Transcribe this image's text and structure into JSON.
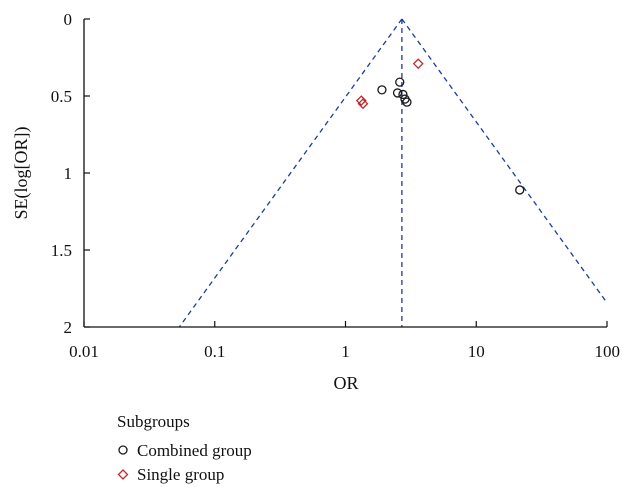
{
  "chart_data": {
    "type": "scatter",
    "title": "",
    "xlabel": "OR",
    "ylabel": "SE(log[OR])",
    "x_scale": "log",
    "xlim": [
      0.01,
      100
    ],
    "x_ticks": [
      "0.01",
      "0.1",
      "1",
      "10",
      "100"
    ],
    "x_tick_values": [
      0.01,
      0.1,
      1,
      10,
      100
    ],
    "ylim": [
      0,
      2
    ],
    "y_inverted": true,
    "y_ticks": [
      "0",
      "0.5",
      "1",
      "1.5",
      "2"
    ],
    "y_tick_values": [
      0,
      0.5,
      1,
      1.5,
      2
    ],
    "grid": false,
    "pooled_or": 2.7,
    "legend": {
      "title": "Subgroups",
      "placement": "bottom-left",
      "items": [
        "Combined group",
        "Single group"
      ]
    },
    "series": [
      {
        "name": "Combined group",
        "marker": "circle",
        "color": "#1a1a1a",
        "points": [
          {
            "x": 1.9,
            "y": 0.46
          },
          {
            "x": 2.5,
            "y": 0.48
          },
          {
            "x": 2.6,
            "y": 0.41
          },
          {
            "x": 2.75,
            "y": 0.49
          },
          {
            "x": 2.85,
            "y": 0.52
          },
          {
            "x": 2.95,
            "y": 0.54
          },
          {
            "x": 21.5,
            "y": 1.11
          }
        ]
      },
      {
        "name": "Single group",
        "marker": "diamond",
        "color": "#c0282d",
        "points": [
          {
            "x": 1.32,
            "y": 0.53
          },
          {
            "x": 1.36,
            "y": 0.55
          },
          {
            "x": 3.6,
            "y": 0.29
          }
        ]
      }
    ],
    "colors": {
      "funnel_line": "#1f3a9e",
      "axis": "#111111"
    }
  }
}
